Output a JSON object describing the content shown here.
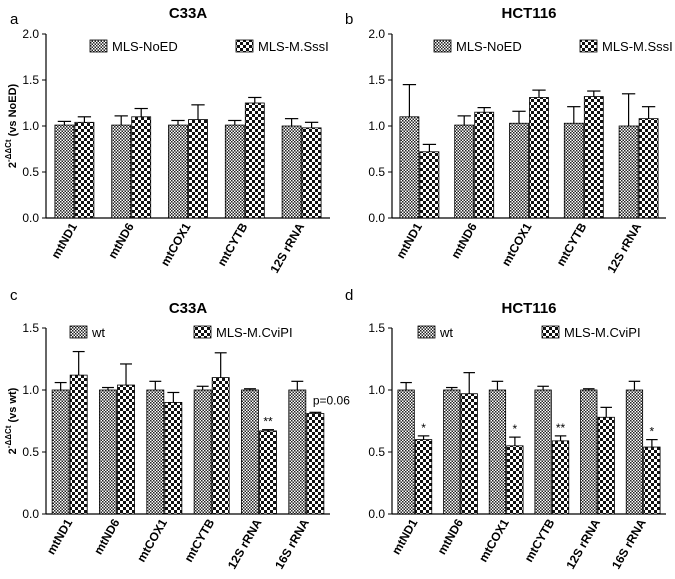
{
  "chart_data": [
    {
      "panel": "a",
      "type": "bar",
      "title": "C33A",
      "ylabel": "2-ΔΔCt (vs NoED)",
      "ylabel_main": "2",
      "ylabel_sup": "-ΔΔCt",
      "ylabel_rest": " (vs NoED)",
      "ylim": [
        0,
        2.0
      ],
      "yticks": [
        "0.0",
        "0.5",
        "1.0",
        "1.5",
        "2.0"
      ],
      "categories": [
        "mtND1",
        "mtND6",
        "mtCOX1",
        "mtCYTB",
        "12S rRNA"
      ],
      "series": [
        {
          "name": "MLS-NoED",
          "pattern": "dense",
          "values": [
            1.01,
            1.01,
            1.01,
            1.01,
            1.0
          ],
          "errors": [
            0.04,
            0.1,
            0.05,
            0.05,
            0.08
          ]
        },
        {
          "name": "MLS-M.SssI",
          "pattern": "checker",
          "values": [
            1.04,
            1.1,
            1.07,
            1.25,
            0.98
          ],
          "errors": [
            0.06,
            0.09,
            0.16,
            0.06,
            0.06
          ]
        }
      ],
      "annotations": []
    },
    {
      "panel": "b",
      "type": "bar",
      "title": "HCT116",
      "ylabel": "",
      "ylim": [
        0,
        2.0
      ],
      "yticks": [
        "0.0",
        "0.5",
        "1.0",
        "1.5",
        "2.0"
      ],
      "categories": [
        "mtND1",
        "mtND6",
        "mtCOX1",
        "mtCYTB",
        "12S rRNA"
      ],
      "series": [
        {
          "name": "MLS-NoED",
          "pattern": "dense",
          "values": [
            1.1,
            1.01,
            1.03,
            1.03,
            1.0
          ],
          "errors": [
            0.35,
            0.1,
            0.13,
            0.18,
            0.35
          ]
        },
        {
          "name": "MLS-M.SssI",
          "pattern": "checker",
          "values": [
            0.72,
            1.15,
            1.31,
            1.32,
            1.08
          ],
          "errors": [
            0.08,
            0.05,
            0.08,
            0.06,
            0.13
          ]
        }
      ],
      "annotations": []
    },
    {
      "panel": "c",
      "type": "bar",
      "title": "C33A",
      "ylabel": "2-ΔΔCt (vs wt)",
      "ylabel_main": "2",
      "ylabel_sup": "-ΔΔCt",
      "ylabel_rest": " (vs wt)",
      "ylim": [
        0,
        1.5
      ],
      "yticks": [
        "0.0",
        "0.5",
        "1.0",
        "1.5"
      ],
      "categories": [
        "mtND1",
        "mtND6",
        "mtCOX1",
        "mtCYTB",
        "12S rRNA",
        "16S rRNA"
      ],
      "series": [
        {
          "name": "wt",
          "pattern": "dense",
          "values": [
            1.0,
            1.0,
            1.0,
            1.0,
            1.0,
            1.0
          ],
          "errors": [
            0.06,
            0.02,
            0.07,
            0.03,
            0.01,
            0.07
          ]
        },
        {
          "name": "MLS-M.CviPI",
          "pattern": "checker",
          "values": [
            1.12,
            1.04,
            0.9,
            1.1,
            0.67,
            0.81
          ],
          "errors": [
            0.19,
            0.17,
            0.08,
            0.2,
            0.01,
            0.01
          ]
        }
      ],
      "annotations": [
        {
          "category": 4,
          "series": 1,
          "text": "**"
        },
        {
          "category": 5,
          "series": 1,
          "text": "p=0.06"
        }
      ]
    },
    {
      "panel": "d",
      "type": "bar",
      "title": "HCT116",
      "ylabel": "",
      "ylim": [
        0,
        1.5
      ],
      "yticks": [
        "0.0",
        "0.5",
        "1.0",
        "1.5"
      ],
      "categories": [
        "mtND1",
        "mtND6",
        "mtCOX1",
        "mtCYTB",
        "12S rRNA",
        "16S rRNA"
      ],
      "series": [
        {
          "name": "wt",
          "pattern": "dense",
          "values": [
            1.0,
            1.0,
            1.0,
            1.0,
            1.0,
            1.0
          ],
          "errors": [
            0.06,
            0.02,
            0.07,
            0.03,
            0.01,
            0.07
          ]
        },
        {
          "name": "MLS-M.CviPI",
          "pattern": "checker",
          "values": [
            0.6,
            0.97,
            0.55,
            0.59,
            0.78,
            0.54
          ],
          "errors": [
            0.03,
            0.17,
            0.07,
            0.04,
            0.08,
            0.06
          ]
        }
      ],
      "annotations": [
        {
          "category": 0,
          "series": 1,
          "text": "*"
        },
        {
          "category": 2,
          "series": 1,
          "text": "*"
        },
        {
          "category": 3,
          "series": 1,
          "text": "**"
        },
        {
          "category": 5,
          "series": 1,
          "text": "*"
        }
      ]
    }
  ]
}
